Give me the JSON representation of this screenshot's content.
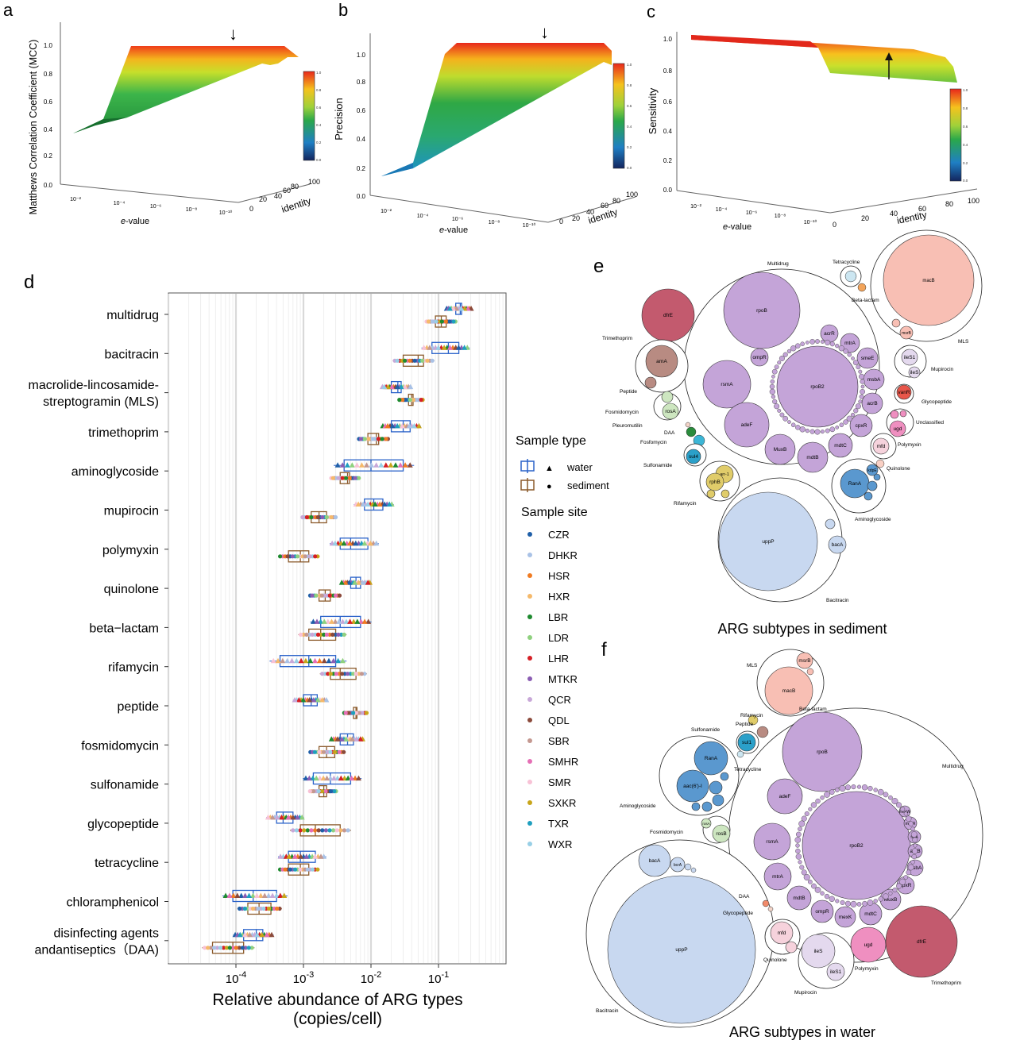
{
  "panels": {
    "a": {
      "letter": "a",
      "zlabel": "Matthews Correlation Coefficient (MCC)",
      "xlabel_italic": "e",
      "xlabel_rest": "-value",
      "ylabel": "identity",
      "zticks": [
        "0.0",
        "0.2",
        "0.4",
        "0.6",
        "0.8",
        "1.0"
      ],
      "xticks": [
        "10⁻²",
        "10⁻⁴",
        "10⁻⁶",
        "10⁻⁸",
        "10⁻¹⁰"
      ],
      "yticks": [
        "0",
        "20",
        "40",
        "60",
        "80",
        "100"
      ],
      "colorbar_ticks": [
        "1.0",
        "0.8",
        "0.6",
        "0.4",
        "0.2",
        "0.0"
      ]
    },
    "b": {
      "letter": "b",
      "zlabel": "Precision",
      "xlabel_italic": "e",
      "xlabel_rest": "-value",
      "ylabel": "identity",
      "zticks": [
        "0.0",
        "0.2",
        "0.4",
        "0.6",
        "0.8",
        "1.0"
      ],
      "xticks": [
        "10⁻²",
        "10⁻⁴",
        "10⁻⁶",
        "10⁻⁸",
        "10⁻¹⁰"
      ],
      "yticks": [
        "0",
        "20",
        "40",
        "60",
        "80",
        "100"
      ],
      "colorbar_ticks": [
        "1.0",
        "0.8",
        "0.6",
        "0.4",
        "0.2",
        "0.0"
      ]
    },
    "c": {
      "letter": "c",
      "zlabel": "Sensitivity",
      "xlabel_italic": "e",
      "xlabel_rest": "-value",
      "ylabel": "identity",
      "zticks": [
        "0.0",
        "0.2",
        "0.4",
        "0.6",
        "0.8",
        "1.0"
      ],
      "xticks": [
        "10⁻²",
        "10⁻⁴",
        "10⁻⁶",
        "10⁻⁸",
        "10⁻¹⁰"
      ],
      "yticks": [
        "0",
        "20",
        "40",
        "60",
        "80",
        "100"
      ],
      "colorbar_ticks": [
        "1.0",
        "0.8",
        "0.6",
        "0.4",
        "0.2",
        "0.0"
      ]
    },
    "d": {
      "letter": "d"
    },
    "e": {
      "letter": "e",
      "title": "ARG subtypes in sediment"
    },
    "f": {
      "letter": "f",
      "title": "ARG subtypes in water"
    }
  },
  "chart_data": [
    {
      "type": "box",
      "id": "d",
      "xlabel_line1": "Relative abundance of ARG types",
      "xlabel_line2": "(copies/cell)",
      "x_scale": "log10",
      "xlim": [
        1e-05,
        1
      ],
      "xticks": [
        {
          "exp": "-4",
          "value": 0.0001
        },
        {
          "exp": "-3",
          "value": 0.001
        },
        {
          "exp": "-2",
          "value": 0.01
        },
        {
          "exp": "-1",
          "value": 0.1
        }
      ],
      "categories": [
        {
          "label": [
            "multidrug"
          ],
          "water": [
            0.18,
            0.2,
            0.21,
            0.22
          ],
          "sediment": [
            0.09,
            0.1,
            0.11,
            0.13
          ]
        },
        {
          "label": [
            "bacitracin"
          ],
          "water": [
            0.08,
            0.11,
            0.14,
            0.2
          ],
          "sediment": [
            0.03,
            0.04,
            0.05,
            0.06
          ]
        },
        {
          "label": [
            "macrolide-lincosamide-",
            "streptogramin (MLS)"
          ],
          "water": [
            0.02,
            0.022,
            0.025,
            0.028
          ],
          "sediment": [
            0.036,
            0.038,
            0.04,
            0.042
          ]
        },
        {
          "label": [
            "trimethoprim"
          ],
          "water": [
            0.02,
            0.025,
            0.03,
            0.038
          ],
          "sediment": [
            0.009,
            0.01,
            0.012,
            0.013
          ]
        },
        {
          "label": [
            "aminoglycoside"
          ],
          "water": [
            0.004,
            0.0045,
            0.01,
            0.03
          ],
          "sediment": [
            0.0035,
            0.004,
            0.0045,
            0.0048
          ]
        },
        {
          "label": [
            "mupirocin"
          ],
          "water": [
            0.008,
            0.009,
            0.011,
            0.015
          ],
          "sediment": [
            0.0013,
            0.0014,
            0.0017,
            0.0022
          ]
        },
        {
          "label": [
            "polymyxin"
          ],
          "water": [
            0.0035,
            0.004,
            0.005,
            0.009
          ],
          "sediment": [
            0.0006,
            0.0007,
            0.0009,
            0.0012
          ]
        },
        {
          "label": [
            "quinolone"
          ],
          "water": [
            0.005,
            0.0055,
            0.006,
            0.007
          ],
          "sediment": [
            0.0017,
            0.0019,
            0.0021,
            0.0025
          ]
        },
        {
          "label": [
            "beta−lactam"
          ],
          "water": [
            0.0018,
            0.002,
            0.0035,
            0.007
          ],
          "sediment": [
            0.0012,
            0.0013,
            0.0018,
            0.003
          ]
        },
        {
          "label": [
            "rifamycin"
          ],
          "water": [
            0.00045,
            0.0005,
            0.0012,
            0.003
          ],
          "sediment": [
            0.0025,
            0.0028,
            0.0035,
            0.006
          ]
        },
        {
          "label": [
            "peptide"
          ],
          "water": [
            0.001,
            0.0011,
            0.0013,
            0.0016
          ],
          "sediment": [
            0.0055,
            0.0058,
            0.006,
            0.0062
          ]
        },
        {
          "label": [
            "fosmidomycin"
          ],
          "water": [
            0.0035,
            0.004,
            0.0045,
            0.0055
          ],
          "sediment": [
            0.0017,
            0.0018,
            0.0022,
            0.0029
          ]
        },
        {
          "label": [
            "sulfonamide"
          ],
          "water": [
            0.0014,
            0.0016,
            0.0025,
            0.005
          ],
          "sediment": [
            0.0017,
            0.0018,
            0.002,
            0.0022
          ]
        },
        {
          "label": [
            "glycopeptide"
          ],
          "water": [
            0.0004,
            0.00045,
            0.0005,
            0.0007
          ],
          "sediment": [
            0.0009,
            0.001,
            0.0015,
            0.0035
          ]
        },
        {
          "label": [
            "tetracycline"
          ],
          "water": [
            0.0006,
            0.00065,
            0.0009,
            0.0015
          ],
          "sediment": [
            0.0006,
            0.00065,
            0.0009,
            0.0012
          ]
        },
        {
          "label": [
            "chloramphenicol"
          ],
          "water": [
            9e-05,
            0.0001,
            0.00018,
            0.0004
          ],
          "sediment": [
            0.00015,
            0.00016,
            0.00022,
            0.00033
          ]
        },
        {
          "label": [
            "disinfecting agents",
            "andantiseptics（DAA)"
          ],
          "water": [
            0.00013,
            0.00014,
            0.0002,
            0.00025
          ],
          "sediment": [
            4.5e-05,
            5e-05,
            9e-05,
            0.00013
          ]
        }
      ],
      "legend": {
        "type_title": "Sample type",
        "types": [
          {
            "name": "water",
            "symbol": "▲",
            "color": "#2a62c9"
          },
          {
            "name": "sediment",
            "symbol": "●",
            "color": "#8b5a2b"
          }
        ],
        "site_title": "Sample site",
        "sites": [
          {
            "name": "CZR",
            "color": "#1f5fa8"
          },
          {
            "name": "DHKR",
            "color": "#a9c2e6"
          },
          {
            "name": "HSR",
            "color": "#f07b22"
          },
          {
            "name": "HXR",
            "color": "#f5b96b"
          },
          {
            "name": "LBR",
            "color": "#1e8a2f"
          },
          {
            "name": "LDR",
            "color": "#8fd17f"
          },
          {
            "name": "LHR",
            "color": "#d61f26"
          },
          {
            "name": "MTKR",
            "color": "#8b5db3"
          },
          {
            "name": "QCR",
            "color": "#c8a8d8"
          },
          {
            "name": "QDL",
            "color": "#8b4a3b"
          },
          {
            "name": "SBR",
            "color": "#c49890"
          },
          {
            "name": "SMHR",
            "color": "#e56fb5"
          },
          {
            "name": "SMR",
            "color": "#f8c2d6"
          },
          {
            "name": "SXKR",
            "color": "#c8a51a"
          },
          {
            "name": "TXR",
            "color": "#1f9fbf"
          },
          {
            "name": "WXR",
            "color": "#98cfe6"
          }
        ]
      }
    }
  ],
  "packing": {
    "e": {
      "groups": [
        "Multidrug",
        "Tetracycline",
        "Beta-lactam",
        "MLS",
        "Trimethoprim",
        "Peptide",
        "Mupirocin",
        "Glycopeptide",
        "Fosmidomycin",
        "Unclassified",
        "Pleuromutilin",
        "DAA",
        "Fosfomycin",
        "Polymyxin",
        "Sulfonamide",
        "Quinolone",
        "Rifamycin",
        "Aminoglycoside",
        "Bacitracin"
      ],
      "genes": [
        "macB",
        "msrB",
        "dfrE",
        "rpoB",
        "acrR",
        "mtrA",
        "smeE",
        "msbA",
        "acrB",
        "ompR",
        "rsmA",
        "rpoB2",
        "cpxR",
        "adeF",
        "MuxB",
        "mdtB",
        "mdtC",
        "arnA",
        "ileS1",
        "ileS",
        "vanR",
        "rosA",
        "ugd",
        "mfd",
        "sul4",
        "arr-1",
        "rphB",
        "kdpE",
        "RanA",
        "uppP",
        "bacA"
      ]
    },
    "f": {
      "groups": [
        "MLS",
        "Beta-lactam",
        "Rifamycin",
        "Peptide",
        "Sulfonamide",
        "Tetracycline",
        "Multidrug",
        "Aminoglycoside",
        "Fosmidomycin",
        "DAA",
        "Glycopeptide",
        "Quinolone",
        "Polymyxin",
        "Mupirocin",
        "Trimethoprim",
        "Bacitracin"
      ],
      "genes": [
        "msrB",
        "macB",
        "sul1",
        "rpoB",
        "RanA",
        "aac(6')-I",
        "rosA",
        "rosB",
        "adeF",
        "rsmA",
        "mtrA",
        "mdtB",
        "ompR",
        "mexK",
        "mdtC",
        "MuxB",
        "cpxR",
        "msbA",
        "acrB",
        "farA",
        "mexR",
        "mexW",
        "rpoB2",
        "bacA",
        "bcrA",
        "uppP",
        "mfd",
        "ileS",
        "ileS1",
        "ugd",
        "dfrE"
      ]
    }
  },
  "arrows": {
    "symbol": "↓"
  }
}
